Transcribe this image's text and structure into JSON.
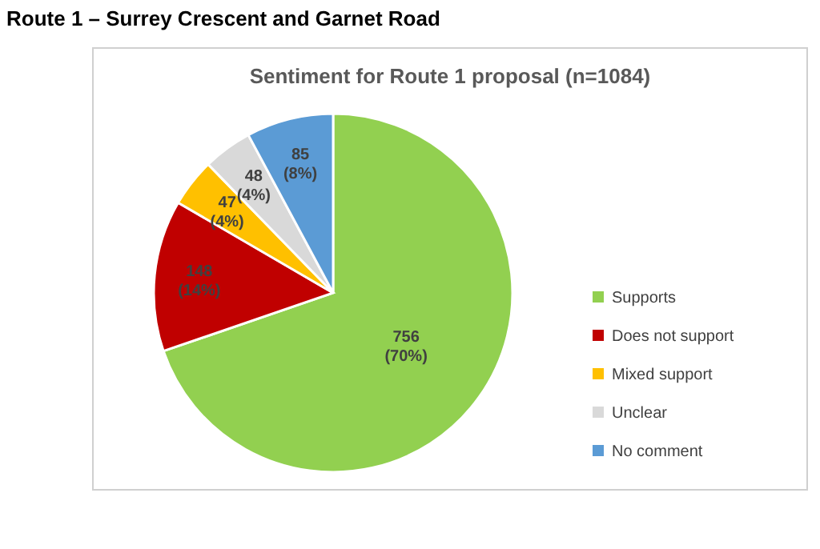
{
  "chart_data": {
    "type": "pie",
    "title": "Route 1 – Surrey Crescent and Garnet Road",
    "subtitle": "Sentiment for Route 1 proposal (n=1084)",
    "categories": [
      "Supports",
      "Does not support",
      "Mixed support",
      "Unclear",
      "No comment"
    ],
    "values": [
      756,
      148,
      47,
      48,
      85
    ],
    "colors": [
      "#92d050",
      "#c00000",
      "#ffc000",
      "#d9d9d9",
      "#5b9bd5"
    ],
    "value_labels": [
      "756\n(70%)",
      "148\n(14%)",
      "47\n(4%)",
      "48\n(4%)",
      "85\n(8%)"
    ],
    "legend": "right"
  }
}
